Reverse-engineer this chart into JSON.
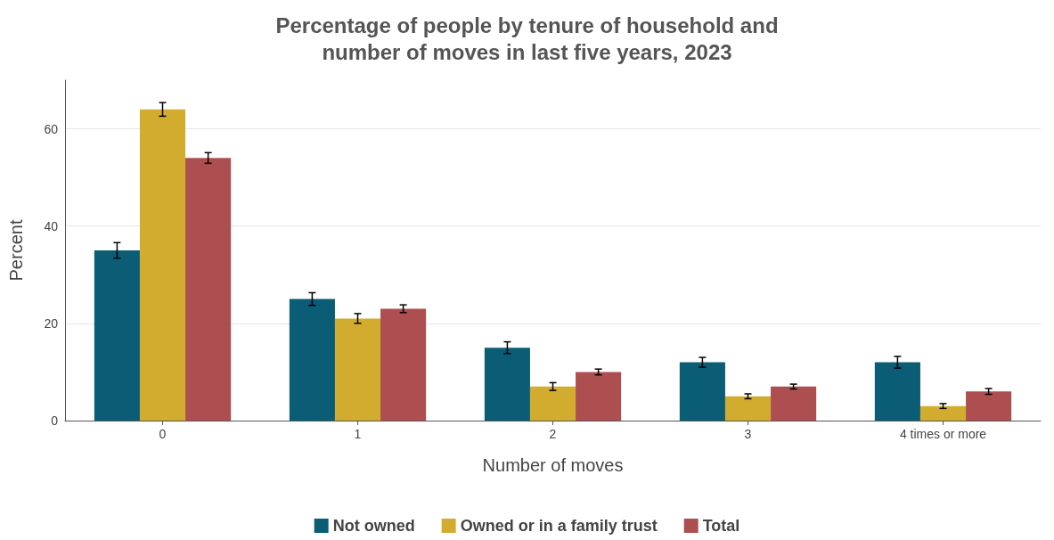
{
  "chart_data": {
    "type": "bar",
    "title": "Percentage of people by tenure of household and\nnumber of moves in last five years, 2023",
    "xlabel": "Number of moves",
    "ylabel": "Percent",
    "categories": [
      "0",
      "1",
      "2",
      "3",
      "4 times or more"
    ],
    "series": [
      {
        "name": "Not owned",
        "color": "#0b5c75",
        "values": [
          35,
          25,
          15,
          12,
          12
        ],
        "errors": [
          1.6,
          1.3,
          1.2,
          1,
          1.2
        ]
      },
      {
        "name": "Owned or in a family trust",
        "color": "#d2ac2f",
        "values": [
          64,
          21,
          7,
          5,
          3
        ],
        "errors": [
          1.4,
          1,
          0.8,
          0.5,
          0.5
        ]
      },
      {
        "name": "Total",
        "color": "#ad4f51",
        "values": [
          54,
          23,
          10,
          7,
          6
        ],
        "errors": [
          1.1,
          0.8,
          0.6,
          0.5,
          0.6
        ]
      }
    ],
    "ylim": [
      0,
      70
    ],
    "yticks": [
      0,
      20,
      40,
      60
    ],
    "grid": "y",
    "legend": "bottom"
  }
}
